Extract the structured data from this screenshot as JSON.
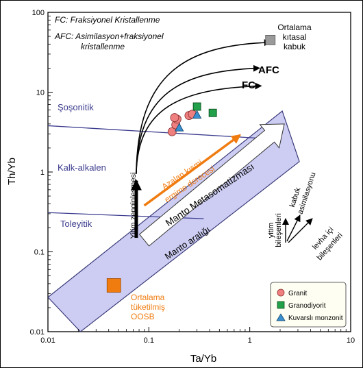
{
  "chart_data": {
    "type": "scatter",
    "xlabel": "Ta/Yb",
    "ylabel": "Th/Yb",
    "xscale": "log",
    "yscale": "log",
    "xlim": [
      0.01,
      10
    ],
    "ylim": [
      0.01,
      100
    ],
    "x_ticks": [
      "0.01",
      "0.1",
      "1",
      "10"
    ],
    "y_ticks": [
      "0.01",
      "0.1",
      "1",
      "10",
      "100"
    ],
    "grid": false,
    "legend_position": "bottom-right",
    "series": [
      {
        "name": "Granit",
        "marker": "circle",
        "color": "#f08080",
        "points": [
          [
            0.17,
            3.2
          ],
          [
            0.185,
            3.9
          ],
          [
            0.19,
            4.6
          ],
          [
            0.18,
            4.8
          ],
          [
            0.25,
            5.1
          ],
          [
            0.27,
            5.3
          ]
        ]
      },
      {
        "name": "Granodiyorit",
        "marker": "square",
        "color": "#22a04a",
        "points": [
          [
            0.3,
            6.6
          ],
          [
            0.43,
            5.5
          ]
        ]
      },
      {
        "name": "Kuvarslı monzonit",
        "marker": "triangle",
        "color": "#3a8fd0",
        "points": [
          [
            0.2,
            3.6
          ],
          [
            0.3,
            5.2
          ]
        ]
      }
    ],
    "special_points": [
      {
        "label": "Ortalama kıtasal kabuk",
        "x": 1.6,
        "y": 45,
        "color": "#9a9a9a"
      },
      {
        "label": "Ortalama tüketilmiş OOSB",
        "x": 0.045,
        "y": 0.038,
        "color": "#f07c10"
      }
    ],
    "field_lines": [
      {
        "label": "Şoşonitik",
        "points": [
          [
            0.01,
            3.8
          ],
          [
            1.6,
            2.6
          ]
        ]
      },
      {
        "label": "Kalk-alkalen",
        "points": [
          [
            0.01,
            0.31
          ],
          [
            0.35,
            0.26
          ]
        ]
      },
      {
        "label": "Toleyitik"
      }
    ],
    "array_band": {
      "label": "Manto aralığı",
      "lower": [
        [
          0.021,
          0.01
        ],
        [
          3.1,
          1.35
        ]
      ],
      "upper": [
        [
          0.01,
          0.027
        ],
        [
          2.1,
          5.8
        ]
      ]
    },
    "trend_arrows": [
      {
        "label": "AFC",
        "from": [
          0.075,
          0.95
        ],
        "to": [
          1.25,
          20
        ]
      },
      {
        "label": "FC",
        "from": [
          0.075,
          0.95
        ],
        "to": [
          1.3,
          12
        ]
      },
      {
        "label": "",
        "from": [
          0.075,
          0.95
        ],
        "to": [
          1.6,
          42
        ]
      },
      {
        "label": "Yitim zenginleşmesi",
        "from": [
          0.075,
          0.15
        ],
        "to": [
          0.075,
          0.95
        ]
      },
      {
        "label": "Manto Metasomatizması",
        "from": [
          0.09,
          0.14
        ],
        "to": [
          2.2,
          4.0
        ]
      },
      {
        "label": "Azalan kısmi ergime derecesi",
        "from": [
          0.09,
          0.38
        ],
        "to": [
          0.8,
          2.9
        ]
      }
    ],
    "component_vectors": [
      {
        "label": "yitim bileşenleri"
      },
      {
        "label": "kabuk asimilasyonu"
      },
      {
        "label": "levha içi bileşenleri"
      }
    ],
    "annotations": {
      "fc_def": "FC: Fraksiyonel Kristallenme",
      "afc_def_1": "AFC: Asimilasyon+fraksiyonel",
      "afc_def_2": "kristallenme",
      "crust_1": "Ortalama",
      "crust_2": "kıtasal",
      "crust_3": "kabuk",
      "oosb_1": "Ortalama",
      "oosb_2": "tüketilmiş",
      "oosb_3": "OOSB",
      "shoshonitic": "Şoşonitik",
      "calc_alkaline": "Kalk-alkalen",
      "tholeiitic": "Toleyitik",
      "mantle_array": "Manto aralığı",
      "metasomatism": "Manto Metasomatizması",
      "melting_1": "Azalan kısmi",
      "melting_2": "ergime derecesi",
      "subduction_enrich": "Yitim zenginleşmesi",
      "afc": "AFC",
      "fc": "FC",
      "vec_subduction_1": "yitim",
      "vec_subduction_2": "bileşenleri",
      "vec_crust_1": "kabuk",
      "vec_crust_2": "asimilasyonu",
      "vec_intraplate_1": "levha içi",
      "vec_intraplate_2": "bileşenleri"
    },
    "colors": {
      "band_fill": "#cdcdf4",
      "band_stroke": "#3a3a78",
      "field_line": "#3a3a8e",
      "field_label": "#3a3a8e",
      "orange": "#f07c10"
    }
  }
}
